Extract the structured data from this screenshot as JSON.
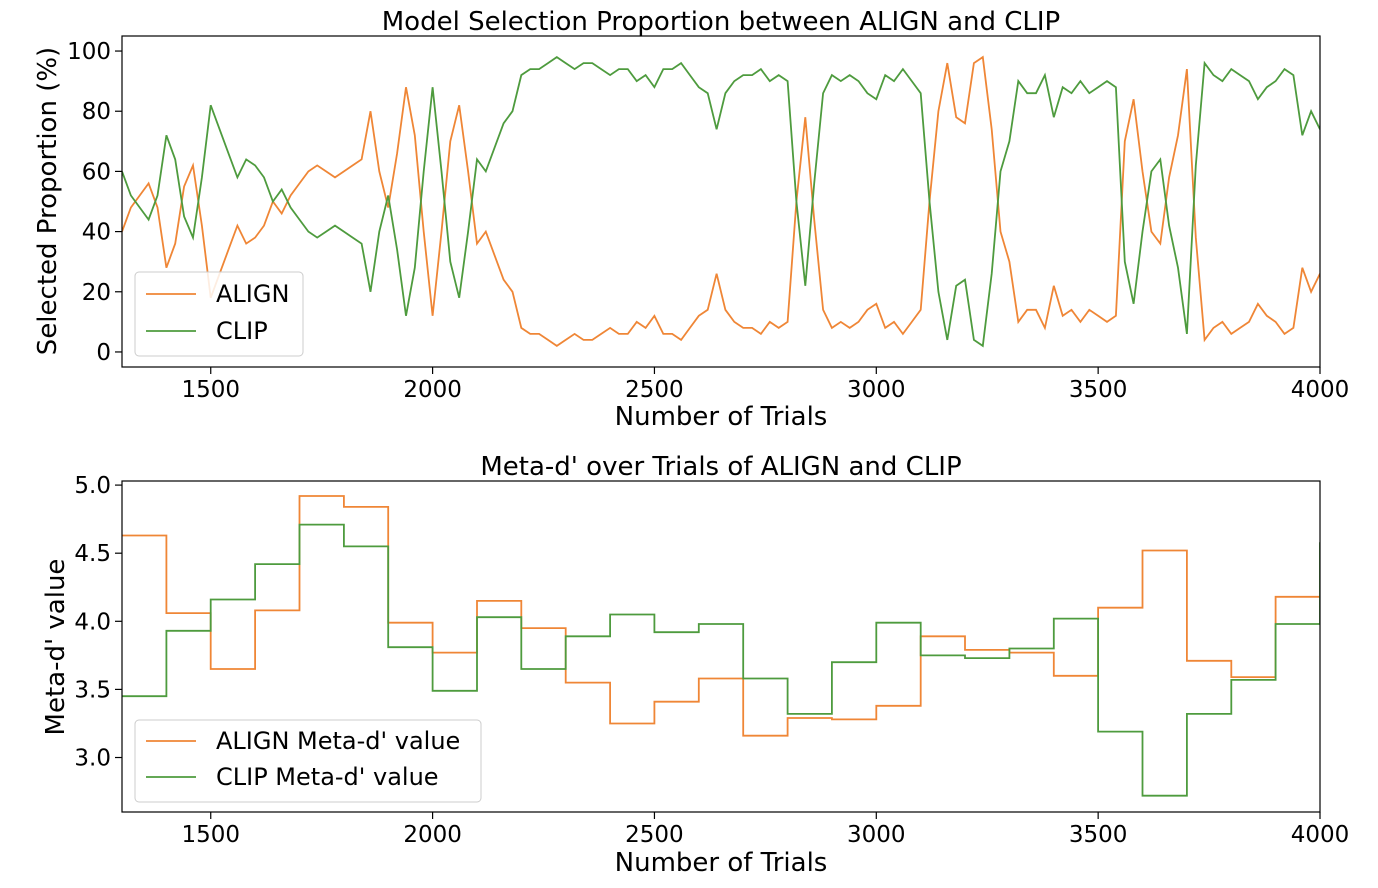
{
  "chart_data": [
    {
      "type": "line",
      "title": "Model Selection Proportion between ALIGN and CLIP",
      "xlabel": "Number of Trials",
      "ylabel": "Selected Proportion (%)",
      "xlim": [
        1300,
        4000
      ],
      "ylim": [
        -5,
        105
      ],
      "xticks": [
        1500,
        2000,
        2500,
        3000,
        3500,
        4000
      ],
      "yticks": [
        0,
        20,
        40,
        60,
        80,
        100
      ],
      "grid": false,
      "legend_position": "lower-left",
      "step": false,
      "complementary_series": true,
      "x": [
        1300,
        1320,
        1340,
        1360,
        1380,
        1400,
        1420,
        1440,
        1460,
        1480,
        1500,
        1520,
        1540,
        1560,
        1580,
        1600,
        1620,
        1640,
        1660,
        1680,
        1700,
        1720,
        1740,
        1760,
        1780,
        1800,
        1820,
        1840,
        1860,
        1880,
        1900,
        1920,
        1940,
        1960,
        1980,
        2000,
        2020,
        2040,
        2060,
        2080,
        2100,
        2120,
        2140,
        2160,
        2180,
        2200,
        2220,
        2240,
        2260,
        2280,
        2300,
        2320,
        2340,
        2360,
        2380,
        2400,
        2420,
        2440,
        2460,
        2480,
        2500,
        2520,
        2540,
        2560,
        2580,
        2600,
        2620,
        2640,
        2660,
        2680,
        2700,
        2720,
        2740,
        2760,
        2780,
        2800,
        2820,
        2840,
        2860,
        2880,
        2900,
        2920,
        2940,
        2960,
        2980,
        3000,
        3020,
        3040,
        3060,
        3080,
        3100,
        3120,
        3140,
        3160,
        3180,
        3200,
        3220,
        3240,
        3260,
        3280,
        3300,
        3320,
        3340,
        3360,
        3380,
        3400,
        3420,
        3440,
        3460,
        3480,
        3500,
        3520,
        3540,
        3560,
        3580,
        3600,
        3620,
        3640,
        3660,
        3680,
        3700,
        3720,
        3740,
        3760,
        3780,
        3800,
        3820,
        3840,
        3860,
        3880,
        3900,
        3920,
        3940,
        3960,
        3980,
        4000
      ],
      "series": [
        {
          "name": "ALIGN",
          "color": "#ef8636",
          "values": [
            40,
            48,
            52,
            56,
            48,
            28,
            36,
            55,
            62,
            42,
            18,
            26,
            34,
            42,
            36,
            38,
            42,
            50,
            46,
            52,
            56,
            60,
            62,
            60,
            58,
            60,
            62,
            64,
            80,
            60,
            48,
            66,
            88,
            72,
            40,
            12,
            40,
            70,
            82,
            60,
            36,
            40,
            32,
            24,
            20,
            8,
            6,
            6,
            4,
            2,
            4,
            6,
            4,
            4,
            6,
            8,
            6,
            6,
            10,
            8,
            12,
            6,
            6,
            4,
            8,
            12,
            14,
            26,
            14,
            10,
            8,
            8,
            6,
            10,
            8,
            10,
            50,
            78,
            44,
            14,
            8,
            10,
            8,
            10,
            14,
            16,
            8,
            10,
            6,
            10,
            14,
            50,
            80,
            96,
            78,
            76,
            96,
            98,
            74,
            40,
            30,
            10,
            14,
            14,
            8,
            22,
            12,
            14,
            10,
            14,
            12,
            10,
            12,
            70,
            84,
            60,
            40,
            36,
            58,
            72,
            94,
            38,
            4,
            8,
            10,
            6,
            8,
            10,
            16,
            12,
            10,
            6,
            8,
            28,
            20,
            26
          ]
        },
        {
          "name": "CLIP",
          "color": "#4e9b3e",
          "values": [
            60,
            52,
            48,
            44,
            52,
            72,
            64,
            45,
            38,
            58,
            82,
            74,
            66,
            58,
            64,
            62,
            58,
            50,
            54,
            48,
            44,
            40,
            38,
            40,
            42,
            40,
            38,
            36,
            20,
            40,
            52,
            34,
            12,
            28,
            60,
            88,
            60,
            30,
            18,
            40,
            64,
            60,
            68,
            76,
            80,
            92,
            94,
            94,
            96,
            98,
            96,
            94,
            96,
            96,
            94,
            92,
            94,
            94,
            90,
            92,
            88,
            94,
            94,
            96,
            92,
            88,
            86,
            74,
            86,
            90,
            92,
            92,
            94,
            90,
            92,
            90,
            50,
            22,
            56,
            86,
            92,
            90,
            92,
            90,
            86,
            84,
            92,
            90,
            94,
            90,
            86,
            50,
            20,
            4,
            22,
            24,
            4,
            2,
            26,
            60,
            70,
            90,
            86,
            86,
            92,
            78,
            88,
            86,
            90,
            86,
            88,
            90,
            88,
            30,
            16,
            40,
            60,
            64,
            42,
            28,
            6,
            62,
            96,
            92,
            90,
            94,
            92,
            90,
            84,
            88,
            90,
            94,
            92,
            72,
            80,
            74
          ]
        }
      ]
    },
    {
      "type": "line",
      "title": "Meta-d' over Trials of ALIGN and CLIP",
      "xlabel": "Number of Trials",
      "ylabel": "Meta-d' value",
      "xlim": [
        1300,
        4000
      ],
      "ylim": [
        2.6,
        5.03
      ],
      "xticks": [
        1500,
        2000,
        2500,
        3000,
        3500,
        4000
      ],
      "yticks": [
        3.0,
        3.5,
        4.0,
        4.5,
        5.0
      ],
      "ytick_labels": [
        "3.0",
        "3.5",
        "4.0",
        "4.5",
        "5.0"
      ],
      "grid": false,
      "legend_position": "lower-left",
      "step": true,
      "x": [
        1300,
        1400,
        1500,
        1600,
        1700,
        1800,
        1900,
        2000,
        2100,
        2200,
        2300,
        2400,
        2500,
        2600,
        2700,
        2800,
        2900,
        3000,
        3100,
        3200,
        3300,
        3400,
        3500,
        3600,
        3700,
        3800,
        3900,
        4000
      ],
      "series": [
        {
          "name": "ALIGN Meta-d' value",
          "color": "#ef8636",
          "values": [
            4.63,
            4.06,
            3.65,
            4.08,
            4.92,
            4.84,
            3.99,
            3.77,
            4.15,
            3.95,
            3.55,
            3.25,
            3.41,
            3.58,
            3.16,
            3.29,
            3.28,
            3.38,
            3.89,
            3.79,
            3.77,
            3.6,
            4.1,
            4.52,
            3.71,
            3.59,
            4.18,
            4.18
          ]
        },
        {
          "name": "CLIP Meta-d' value",
          "color": "#4e9b3e",
          "values": [
            3.45,
            3.93,
            4.16,
            4.42,
            4.71,
            4.55,
            3.81,
            3.49,
            4.03,
            3.65,
            3.89,
            4.05,
            3.92,
            3.98,
            3.58,
            3.32,
            3.7,
            3.99,
            3.75,
            3.73,
            3.8,
            4.02,
            3.19,
            2.72,
            3.32,
            3.57,
            3.98,
            4.58
          ]
        }
      ]
    }
  ]
}
